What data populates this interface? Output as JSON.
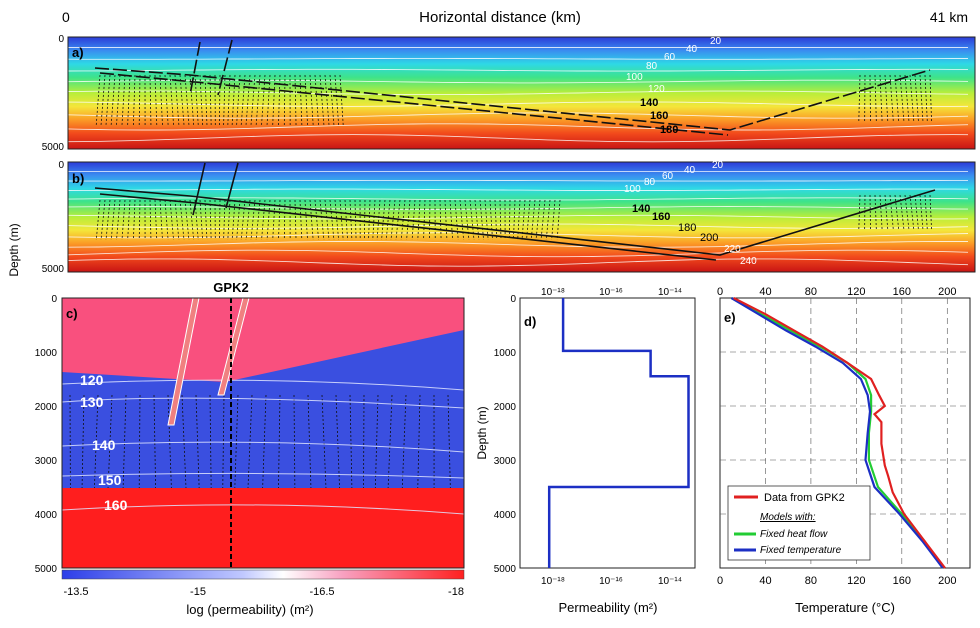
{
  "header": {
    "title": "Horizontal distance  (km)",
    "x_start": "0",
    "x_end": "41 km"
  },
  "depth_axis_label": "Depth  (m)",
  "panel_a": {
    "label": "a)",
    "ticks": [
      "0",
      "5000"
    ],
    "isotherm_labels_white": [
      "20",
      "40",
      "60",
      "80",
      "100",
      "120"
    ],
    "isotherm_labels_black": [
      "140",
      "160",
      "180"
    ]
  },
  "panel_b": {
    "label": "b)",
    "ticks": [
      "0",
      "5000"
    ],
    "isotherm_labels_white": [
      "20",
      "40",
      "60",
      "80",
      "100",
      "220",
      "240"
    ],
    "isotherm_labels_black": [
      "140",
      "160",
      "180",
      "200"
    ]
  },
  "panel_c": {
    "label": "c)",
    "well_label": "GPK2",
    "y_ticks": [
      "0",
      "1000",
      "2000",
      "3000",
      "4000",
      "5000"
    ],
    "isotherm_labels": [
      "120",
      "130",
      "140",
      "150",
      "160"
    ],
    "colorbar_ticks": [
      "-13.5",
      "-15",
      "-16.5",
      "-18"
    ],
    "colorbar_label": "log (permeability)   (m²)",
    "colors": {
      "high": "#3a4fe0",
      "low": "#ff4b4b",
      "top": "#f9507e",
      "fault": "#f08080"
    }
  },
  "panel_d": {
    "label": "d)",
    "top_ticks": [
      "10⁻¹⁸",
      "10⁻¹⁶",
      "10⁻¹⁴"
    ],
    "bottom_ticks": [
      "10⁻¹⁸",
      "10⁻¹⁶",
      "10⁻¹⁴"
    ],
    "y_ticks": [
      "0",
      "1000",
      "2000",
      "3000",
      "4000",
      "5000"
    ],
    "ylabel": "Depth  (m)",
    "xlabel": "Permeability   (m²)"
  },
  "panel_e": {
    "label": "e)",
    "top_ticks": [
      "0",
      "40",
      "80",
      "120",
      "160",
      "200"
    ],
    "bottom_ticks": [
      "0",
      "40",
      "80",
      "120",
      "160",
      "200"
    ],
    "xlabel": "Temperature   (°C)",
    "legend": {
      "data": "Data from GPK2",
      "models_title": "Models with:",
      "heat_flow": "Fixed heat flow",
      "temperature": "Fixed temperature"
    },
    "colors": {
      "data": "#e02020",
      "heat_flow": "#22cc33",
      "temperature": "#1c2fc4"
    }
  },
  "chart_data": [
    {
      "type": "heatmap",
      "panel": "a",
      "xlim": [
        0,
        41
      ],
      "ylim": [
        0,
        5000
      ],
      "isotherms": [
        20,
        40,
        60,
        80,
        100,
        120,
        140,
        160,
        180
      ]
    },
    {
      "type": "heatmap",
      "panel": "b",
      "xlim": [
        0,
        41
      ],
      "ylim": [
        0,
        5000
      ],
      "isotherms": [
        20,
        40,
        60,
        80,
        100,
        140,
        160,
        180,
        200,
        220,
        240
      ]
    },
    {
      "type": "heatmap",
      "panel": "c",
      "ylim": [
        0,
        5000
      ],
      "colorbar_range": [
        -13.5,
        -18
      ],
      "units": [
        {
          "top": 0,
          "bottom": 1500,
          "log_k": -17.5
        },
        {
          "top": 1500,
          "bottom": 3500,
          "log_k": -14
        },
        {
          "top": 3500,
          "bottom": 5000,
          "log_k": -18
        }
      ],
      "isotherms": [
        120,
        130,
        140,
        150,
        160
      ]
    },
    {
      "type": "line",
      "panel": "d",
      "xscale": "log",
      "xlim": [
        1e-19,
        1e-13
      ],
      "ylim": [
        0,
        5000
      ],
      "series": [
        {
          "depth": [
            0,
            980,
            980,
            1450,
            1450,
            3500,
            3500,
            5000
          ],
          "permeability": [
            3e-18,
            3e-18,
            3e-15,
            3e-15,
            6e-14,
            6e-14,
            1e-18,
            1e-18
          ]
        }
      ]
    },
    {
      "type": "line",
      "panel": "e",
      "xlim": [
        0,
        220
      ],
      "ylim": [
        0,
        5000
      ],
      "series": [
        {
          "name": "Data from GPK2",
          "depth": [
            0,
            300,
            600,
            900,
            1200,
            1500,
            1800,
            2000,
            2150,
            2300,
            2700,
            3100,
            3300,
            3600,
            4000,
            4500,
            5000
          ],
          "temperature": [
            12,
            40,
            65,
            90,
            112,
            133,
            140,
            145,
            136,
            142,
            142,
            145,
            148,
            152,
            162,
            180,
            198
          ]
        },
        {
          "name": "Fixed heat flow",
          "depth": [
            0,
            300,
            600,
            900,
            1200,
            1500,
            1800,
            2100,
            2500,
            3000,
            3500,
            4000,
            4500,
            5000
          ],
          "temperature": [
            10,
            36,
            62,
            88,
            112,
            128,
            133,
            133,
            131,
            131,
            139,
            160,
            180,
            196
          ]
        },
        {
          "name": "Fixed temperature",
          "depth": [
            0,
            300,
            600,
            900,
            1200,
            1500,
            1800,
            2100,
            2500,
            3000,
            3500,
            4000,
            4500,
            5000
          ],
          "temperature": [
            10,
            34,
            58,
            84,
            108,
            124,
            130,
            132,
            130,
            128,
            136,
            158,
            178,
            196
          ]
        }
      ]
    }
  ]
}
